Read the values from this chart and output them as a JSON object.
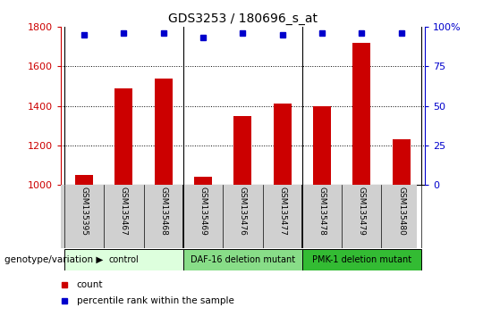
{
  "title": "GDS3253 / 180696_s_at",
  "samples": [
    "GSM135395",
    "GSM135467",
    "GSM135468",
    "GSM135469",
    "GSM135476",
    "GSM135477",
    "GSM135478",
    "GSM135479",
    "GSM135480"
  ],
  "counts": [
    1050,
    1490,
    1540,
    1040,
    1350,
    1410,
    1400,
    1720,
    1230
  ],
  "percentiles": [
    95,
    96,
    96,
    93,
    96,
    95,
    96,
    96,
    96
  ],
  "ylim_left": [
    1000,
    1800
  ],
  "ylim_right": [
    0,
    100
  ],
  "yticks_left": [
    1000,
    1200,
    1400,
    1600,
    1800
  ],
  "yticks_right": [
    0,
    25,
    50,
    75,
    100
  ],
  "ytick_labels_right": [
    "0",
    "25",
    "50",
    "75",
    "100%"
  ],
  "bar_color": "#cc0000",
  "dot_color": "#0000cc",
  "groups": [
    {
      "label": "control",
      "start": 0,
      "end": 3,
      "color": "#ddffdd"
    },
    {
      "label": "DAF-16 deletion mutant",
      "start": 3,
      "end": 6,
      "color": "#88dd88"
    },
    {
      "label": "PMK-1 deletion mutant",
      "start": 6,
      "end": 9,
      "color": "#33bb33"
    }
  ],
  "group_label_prefix": "genotype/variation",
  "legend_items": [
    {
      "label": "count",
      "color": "#cc0000"
    },
    {
      "label": "percentile rank within the sample",
      "color": "#0000cc"
    }
  ],
  "grid_color": "black",
  "title_color": "black",
  "left_tick_color": "#cc0000",
  "right_tick_color": "#0000cc",
  "tick_label_area_color": "#d0d0d0"
}
